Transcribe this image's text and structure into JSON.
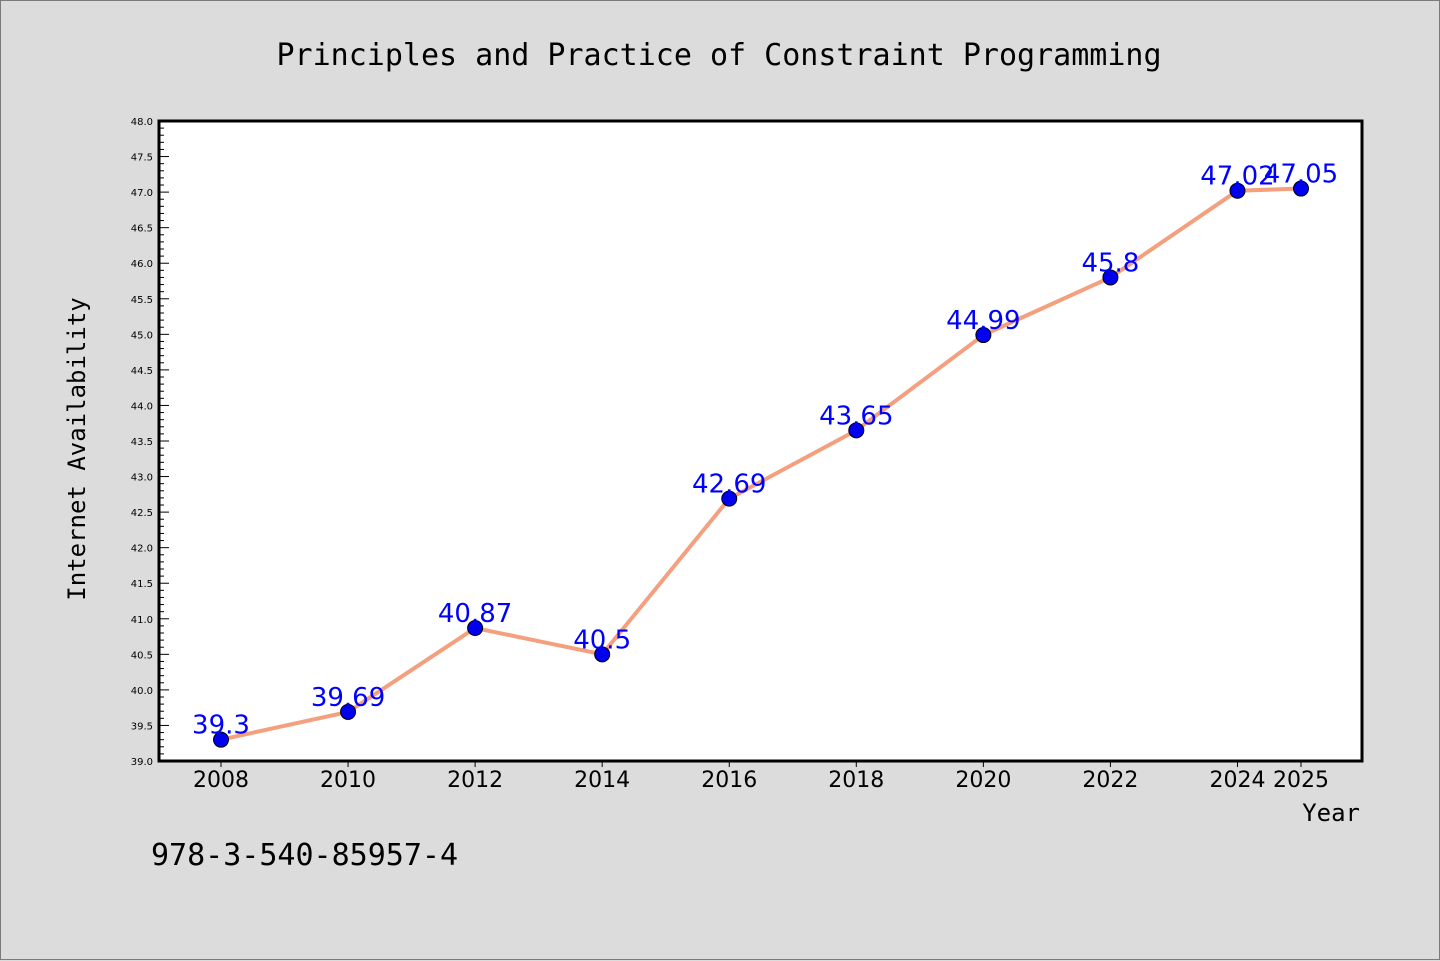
{
  "chart_data": {
    "type": "line",
    "title": "Principles and Practice of Constraint Programming",
    "xlabel": "Year",
    "ylabel": "Internet Availability",
    "x": [
      "2008",
      "2010",
      "2012",
      "2014",
      "2016",
      "2018",
      "2020",
      "2022",
      "2024",
      "2025"
    ],
    "series": [
      {
        "values": [
          39.3,
          39.69,
          40.87,
          40.5,
          42.69,
          43.65,
          44.99,
          45.8,
          47.02,
          47.05
        ],
        "line_color": "#f4a07f",
        "marker_color": "#0000ee"
      }
    ],
    "data_labels": [
      "39.3",
      "39.69",
      "40.87",
      "40.5",
      "42.69",
      "43.65",
      "44.99",
      "45.8",
      "47.02",
      "47.05"
    ],
    "ylim": [
      39.0,
      48.0
    ],
    "yticks": [
      "39.0",
      "39.5",
      "40.0",
      "40.5",
      "41.0",
      "41.5",
      "42.0",
      "42.5",
      "43.0",
      "43.5",
      "44.0",
      "44.5",
      "45.0",
      "45.5",
      "46.0",
      "46.5",
      "47.0",
      "47.5",
      "48.0"
    ],
    "grid": false,
    "legend": "none",
    "data_label_color": "#0000ff"
  },
  "footer": {
    "isbn": "978-3-540-85957-4"
  }
}
